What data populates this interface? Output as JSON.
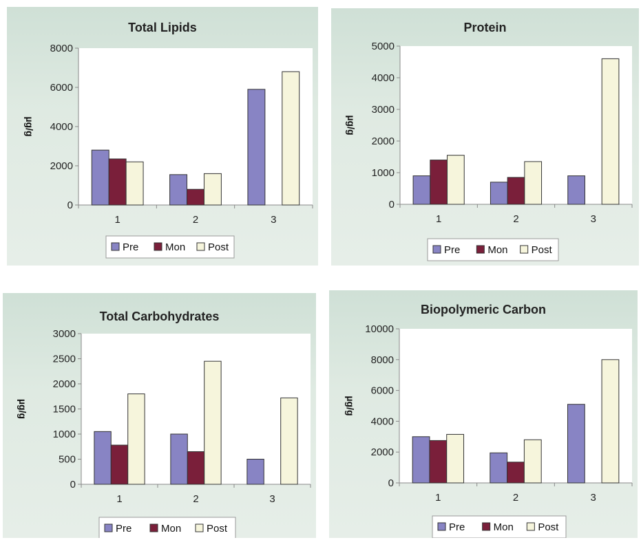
{
  "colors": {
    "Pre": "#8884c4",
    "Mon": "#7a1f3a",
    "Post": "#f6f5dc",
    "panel_bg": "#dfeae2",
    "plot_bg": "#ffffff"
  },
  "chart_data": [
    {
      "type": "bar",
      "title": "Total Lipids",
      "ylabel": "µg/g",
      "xlabel": "",
      "categories": [
        "1",
        "2",
        "3"
      ],
      "ylim": [
        0,
        8000
      ],
      "yticks": [
        "0",
        "2000",
        "4000",
        "6000",
        "8000"
      ],
      "legend": [
        "Pre",
        "Mon",
        "Post"
      ],
      "legend_placement": "bottom",
      "series": [
        {
          "name": "Pre",
          "values": [
            2800,
            1550,
            5900
          ]
        },
        {
          "name": "Mon",
          "values": [
            2350,
            800,
            null
          ]
        },
        {
          "name": "Post",
          "values": [
            2200,
            1600,
            6800
          ]
        }
      ]
    },
    {
      "type": "bar",
      "title": "Protein",
      "ylabel": "µg/g",
      "xlabel": "",
      "categories": [
        "1",
        "2",
        "3"
      ],
      "ylim": [
        0,
        5000
      ],
      "yticks": [
        "0",
        "1000",
        "2000",
        "3000",
        "4000",
        "5000"
      ],
      "legend": [
        "Pre",
        "Mon",
        "Post"
      ],
      "legend_placement": "bottom",
      "series": [
        {
          "name": "Pre",
          "values": [
            900,
            700,
            900
          ]
        },
        {
          "name": "Mon",
          "values": [
            1400,
            850,
            null
          ]
        },
        {
          "name": "Post",
          "values": [
            1550,
            1350,
            4600
          ]
        }
      ]
    },
    {
      "type": "bar",
      "title": "Total Carbohydrates",
      "ylabel": "µg/g",
      "xlabel": "",
      "categories": [
        "1",
        "2",
        "3"
      ],
      "ylim": [
        0,
        3000
      ],
      "yticks": [
        "0",
        "500",
        "1000",
        "1500",
        "2000",
        "2500",
        "3000"
      ],
      "legend": [
        "Pre",
        "Mon",
        "Post"
      ],
      "legend_placement": "bottom",
      "series": [
        {
          "name": "Pre",
          "values": [
            1050,
            1000,
            500
          ]
        },
        {
          "name": "Mon",
          "values": [
            780,
            650,
            null
          ]
        },
        {
          "name": "Post",
          "values": [
            1800,
            2450,
            1720
          ]
        }
      ]
    },
    {
      "type": "bar",
      "title": "Biopolymeric Carbon",
      "ylabel": "µg/g",
      "xlabel": "",
      "categories": [
        "1",
        "2",
        "3"
      ],
      "ylim": [
        0,
        10000
      ],
      "yticks": [
        "0",
        "2000",
        "4000",
        "6000",
        "8000",
        "10000"
      ],
      "legend": [
        "Pre",
        "Mon",
        "Post"
      ],
      "legend_placement": "bottom",
      "series": [
        {
          "name": "Pre",
          "values": [
            3000,
            1950,
            5100
          ]
        },
        {
          "name": "Mon",
          "values": [
            2750,
            1350,
            null
          ]
        },
        {
          "name": "Post",
          "values": [
            3150,
            2800,
            8000
          ]
        }
      ]
    }
  ]
}
